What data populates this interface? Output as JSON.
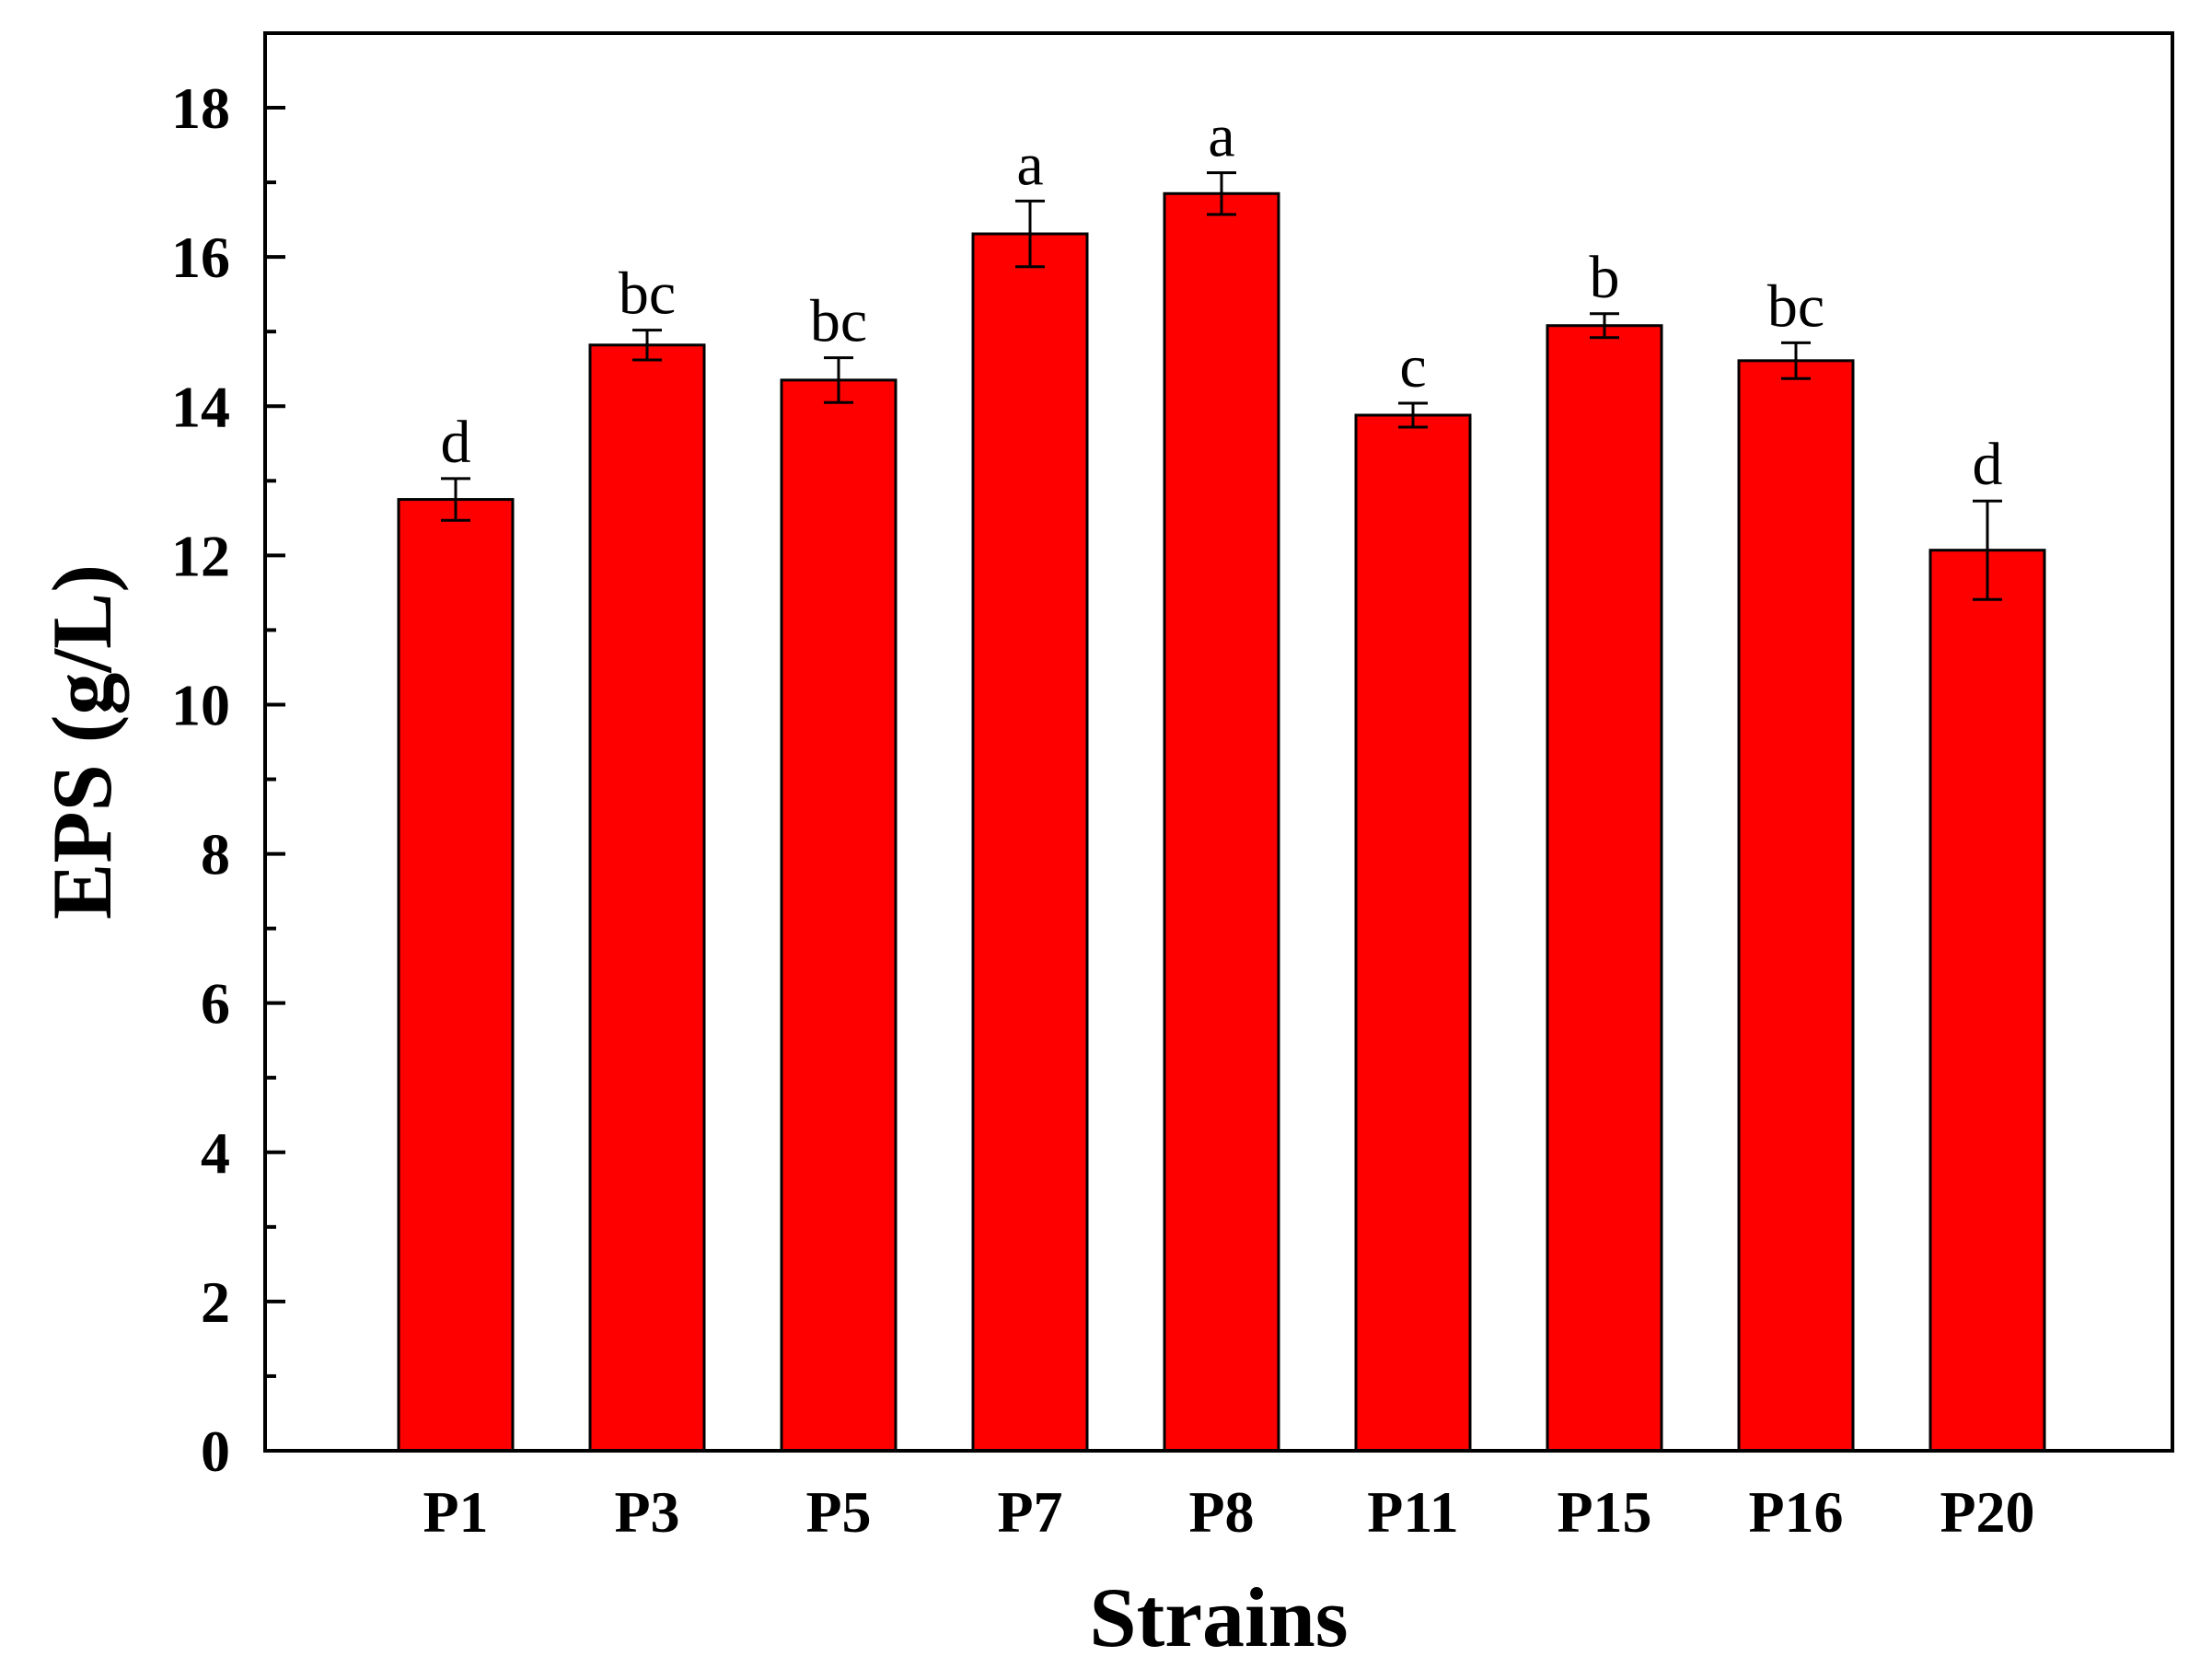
{
  "chart_data": {
    "type": "bar",
    "title": "",
    "xlabel": "Strains",
    "ylabel": "EPS (g/L)",
    "ylim": [
      0,
      19
    ],
    "yticks": [
      0,
      2,
      4,
      6,
      8,
      10,
      12,
      14,
      16,
      18
    ],
    "categories": [
      "P1",
      "P3",
      "P5",
      "P7",
      "P8",
      "P11",
      "P15",
      "P16",
      "P20"
    ],
    "values": [
      12.75,
      14.82,
      14.35,
      16.31,
      16.85,
      13.88,
      15.08,
      14.61,
      12.07
    ],
    "errors": [
      0.28,
      0.2,
      0.3,
      0.44,
      0.28,
      0.16,
      0.16,
      0.24,
      0.66
    ],
    "significance": [
      "d",
      "bc",
      "bc",
      "a",
      "a",
      "c",
      "b",
      "bc",
      "d"
    ],
    "bar_color": "#ff0000",
    "grid": false,
    "legend": "none"
  }
}
